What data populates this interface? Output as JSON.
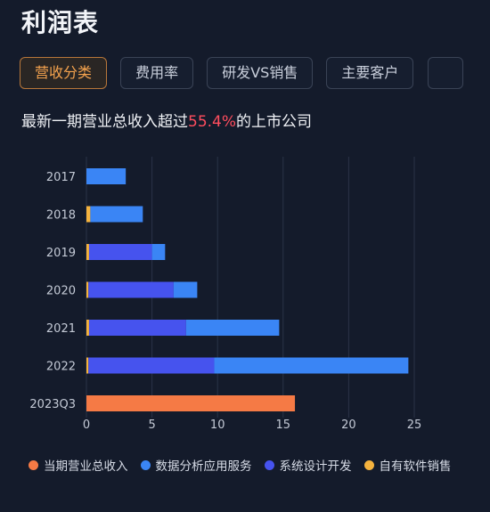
{
  "page": {
    "title": "利润表",
    "tabs": [
      {
        "label": "营收分类",
        "active": true
      },
      {
        "label": "费用率",
        "active": false
      },
      {
        "label": "研发VS销售",
        "active": false
      },
      {
        "label": "主要客户",
        "active": false
      },
      {
        "label": "",
        "active": false
      }
    ],
    "headline_prefix": "最新一期营业总收入超过",
    "headline_highlight": "55.4%",
    "headline_suffix": "的上市公司"
  },
  "colors": {
    "background": "#141b2b",
    "accent": "#f5a34e",
    "highlight": "#ff4d5e"
  },
  "chart_data": {
    "type": "bar",
    "orientation": "horizontal",
    "stacked": true,
    "categories": [
      "2017",
      "2018",
      "2019",
      "2020",
      "2021",
      "2022",
      "2023Q3"
    ],
    "series": [
      {
        "name": "当期营业总收入",
        "color": "#f57a45",
        "values": [
          0,
          0,
          0,
          0,
          0,
          0,
          15.9
        ]
      },
      {
        "name": "自有软件销售",
        "color": "#f5b33e",
        "values": [
          0,
          0.3,
          0.2,
          0.15,
          0.2,
          0.15,
          0
        ]
      },
      {
        "name": "系统设计开发",
        "color": "#4653ee",
        "values": [
          0,
          0,
          4.8,
          6.5,
          7.4,
          9.6,
          0
        ]
      },
      {
        "name": "数据分析应用服务",
        "color": "#3a85f5",
        "values": [
          3.0,
          4.0,
          1.0,
          1.8,
          7.1,
          14.8,
          0
        ]
      }
    ],
    "xlim": [
      0,
      25
    ],
    "xticks": [
      "0",
      "5",
      "10",
      "15",
      "20",
      "25"
    ],
    "grid": true,
    "legend_position": "bottom",
    "legend_order": [
      "当期营业总收入",
      "数据分析应用服务",
      "系统设计开发",
      "自有软件销售"
    ]
  }
}
